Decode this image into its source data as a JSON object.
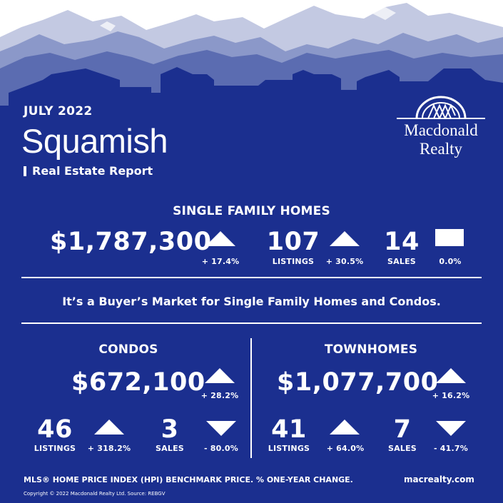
{
  "report": {
    "month": "JULY 2022",
    "city": "Squamish",
    "subtitle": "Real Estate Report"
  },
  "logo": {
    "line1": "Macdonald",
    "line2": "Realty"
  },
  "single_family": {
    "heading": "SINGLE FAMILY HOMES",
    "price": "$1,787,300",
    "price_change": "+ 17.4%",
    "price_trend": "up",
    "listings": "107",
    "listings_label": "LISTINGS",
    "listings_change": "+ 30.5%",
    "listings_trend": "up",
    "sales": "14",
    "sales_label": "SALES",
    "sales_change": "0.0%",
    "sales_trend": "flat"
  },
  "tagline": "It’s a Buyer’s Market for Single Family Homes and Condos.",
  "condos": {
    "heading": "CONDOS",
    "price": "$672,100",
    "price_change": "+ 28.2%",
    "price_trend": "up",
    "listings": "46",
    "listings_label": "LISTINGS",
    "listings_change": "+ 318.2%",
    "listings_trend": "up",
    "sales": "3",
    "sales_label": "SALES",
    "sales_change": "- 80.0%",
    "sales_trend": "down"
  },
  "townhomes": {
    "heading": "TOWNHOMES",
    "price": "$1,077,700",
    "price_change": "+ 16.2%",
    "price_trend": "up",
    "listings": "41",
    "listings_label": "LISTINGS",
    "listings_change": "+ 64.0%",
    "listings_trend": "up",
    "sales": "7",
    "sales_label": "SALES",
    "sales_change": "- 41.7%",
    "sales_trend": "down"
  },
  "footer": {
    "note": "MLS® HOME PRICE INDEX (HPI) BENCHMARK PRICE.  % ONE-YEAR CHANGE.",
    "website": "macrealty.com",
    "copyright": "Copyright © 2022 Macdonald Realty Ltd.  Source: REBGV"
  },
  "colors": {
    "background": "#1b2f8f",
    "mountain_far": "#c3c9e2",
    "mountain_mid": "#8b98c9",
    "mountain_near": "#5b6cb1",
    "text": "#ffffff"
  }
}
